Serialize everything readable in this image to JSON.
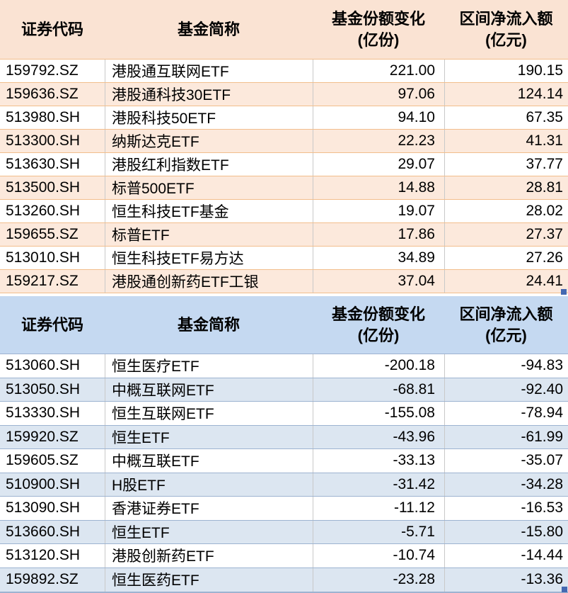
{
  "colors": {
    "inflow_header_bg": "#FAE3D3",
    "inflow_row_alt_bg": "#FCE9DC",
    "inflow_grid_line": "#F2BE8C",
    "outflow_header_bg": "#C5D9F1",
    "outflow_row_alt_bg": "#DCE6F1",
    "outflow_grid_line": "#9DB3D1",
    "column_divider": "#C9C9C9",
    "fill_handle": "#4468B1"
  },
  "tables": [
    {
      "theme": "peach",
      "header": {
        "code": "证券代码",
        "name": "基金简称",
        "share_line1": "基金份额变化",
        "share_line2": "(亿份)",
        "flow_line1": "区间净流入额",
        "flow_line2": "(亿元)"
      },
      "rows": [
        {
          "code": "159792.SZ",
          "name": "港股通互联网ETF",
          "share_change": "221.00",
          "net_flow": "190.15"
        },
        {
          "code": "159636.SZ",
          "name": "港股通科技30ETF",
          "share_change": "97.06",
          "net_flow": "124.14"
        },
        {
          "code": "513980.SH",
          "name": "港股科技50ETF",
          "share_change": "94.10",
          "net_flow": "67.35"
        },
        {
          "code": "513300.SH",
          "name": "纳斯达克ETF",
          "share_change": "22.23",
          "net_flow": "41.31"
        },
        {
          "code": "513630.SH",
          "name": "港股红利指数ETF",
          "share_change": "29.07",
          "net_flow": "37.77"
        },
        {
          "code": "513500.SH",
          "name": "标普500ETF",
          "share_change": "14.88",
          "net_flow": "28.81"
        },
        {
          "code": "513260.SH",
          "name": "恒生科技ETF基金",
          "share_change": "19.07",
          "net_flow": "28.02"
        },
        {
          "code": "159655.SZ",
          "name": "标普ETF",
          "share_change": "17.86",
          "net_flow": "27.37"
        },
        {
          "code": "513010.SH",
          "name": "恒生科技ETF易方达",
          "share_change": "34.89",
          "net_flow": "27.26"
        },
        {
          "code": "159217.SZ",
          "name": "港股通创新药ETF工银",
          "share_change": "37.04",
          "net_flow": "24.41"
        }
      ]
    },
    {
      "theme": "blue",
      "header": {
        "code": "证券代码",
        "name": "基金简称",
        "share_line1": "基金份额变化",
        "share_line2": "(亿份)",
        "flow_line1": "区间净流入额",
        "flow_line2": "(亿元)"
      },
      "rows": [
        {
          "code": "513060.SH",
          "name": "恒生医疗ETF",
          "share_change": "-200.18",
          "net_flow": "-94.83"
        },
        {
          "code": "513050.SH",
          "name": "中概互联网ETF",
          "share_change": "-68.81",
          "net_flow": "-92.40"
        },
        {
          "code": "513330.SH",
          "name": "恒生互联网ETF",
          "share_change": "-155.08",
          "net_flow": "-78.94"
        },
        {
          "code": "159920.SZ",
          "name": "恒生ETF",
          "share_change": "-43.96",
          "net_flow": "-61.99"
        },
        {
          "code": "159605.SZ",
          "name": "中概互联ETF",
          "share_change": "-33.13",
          "net_flow": "-35.07"
        },
        {
          "code": "510900.SH",
          "name": "H股ETF",
          "share_change": "-31.42",
          "net_flow": "-34.28"
        },
        {
          "code": "513090.SH",
          "name": "香港证券ETF",
          "share_change": "-11.12",
          "net_flow": "-16.53"
        },
        {
          "code": "513660.SH",
          "name": "恒生ETF",
          "share_change": "-5.71",
          "net_flow": "-15.80"
        },
        {
          "code": "513120.SH",
          "name": "港股创新药ETF",
          "share_change": "-10.74",
          "net_flow": "-14.44"
        },
        {
          "code": "159892.SZ",
          "name": "恒生医药ETF",
          "share_change": "-23.28",
          "net_flow": "-13.36"
        }
      ]
    }
  ]
}
